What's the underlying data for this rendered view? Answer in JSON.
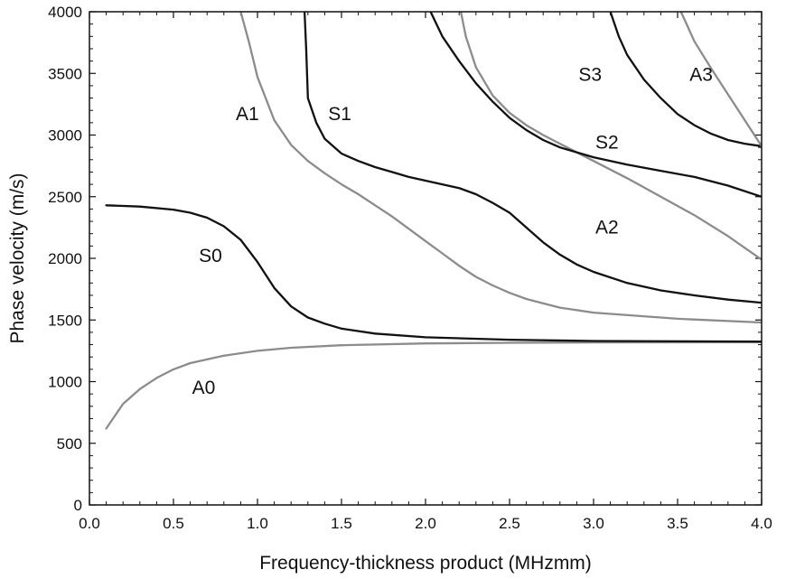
{
  "chart_data": {
    "type": "line",
    "title": "",
    "xlabel": "Frequency-thickness product (MHzmm)",
    "ylabel": "Phase velocity (m/s)",
    "xlim": [
      0.0,
      4.0
    ],
    "ylim": [
      0,
      4000
    ],
    "x_ticks": [
      "0.0",
      "0.5",
      "1.0",
      "1.5",
      "2.0",
      "2.5",
      "3.0",
      "3.5",
      "4.0"
    ],
    "y_ticks": [
      "0",
      "500",
      "1000",
      "1500",
      "2000",
      "2500",
      "3000",
      "3500",
      "4000"
    ],
    "grid": false,
    "colors": {
      "symmetric": "#111111",
      "antisymmetric": "#8c8c8c"
    },
    "series": [
      {
        "name": "A0",
        "color": "#8c8c8c",
        "label_at": [
          0.68,
          960
        ],
        "points": [
          [
            0.1,
            620
          ],
          [
            0.2,
            820
          ],
          [
            0.3,
            940
          ],
          [
            0.4,
            1030
          ],
          [
            0.5,
            1100
          ],
          [
            0.6,
            1150
          ],
          [
            0.8,
            1210
          ],
          [
            1.0,
            1250
          ],
          [
            1.2,
            1275
          ],
          [
            1.5,
            1295
          ],
          [
            2.0,
            1310
          ],
          [
            2.5,
            1315
          ],
          [
            3.0,
            1318
          ],
          [
            4.0,
            1320
          ]
        ]
      },
      {
        "name": "S0",
        "color": "#111111",
        "label_at": [
          0.72,
          2030
        ],
        "points": [
          [
            0.1,
            2430
          ],
          [
            0.3,
            2420
          ],
          [
            0.5,
            2395
          ],
          [
            0.6,
            2370
          ],
          [
            0.7,
            2330
          ],
          [
            0.8,
            2260
          ],
          [
            0.9,
            2150
          ],
          [
            1.0,
            1970
          ],
          [
            1.1,
            1760
          ],
          [
            1.2,
            1610
          ],
          [
            1.3,
            1520
          ],
          [
            1.4,
            1470
          ],
          [
            1.5,
            1430
          ],
          [
            1.7,
            1390
          ],
          [
            2.0,
            1360
          ],
          [
            2.5,
            1340
          ],
          [
            3.0,
            1330
          ],
          [
            4.0,
            1325
          ]
        ]
      },
      {
        "name": "A1",
        "color": "#8c8c8c",
        "label_at": [
          0.94,
          3180
        ],
        "points": [
          [
            0.9,
            4000
          ],
          [
            0.95,
            3750
          ],
          [
            1.0,
            3470
          ],
          [
            1.1,
            3120
          ],
          [
            1.2,
            2920
          ],
          [
            1.3,
            2790
          ],
          [
            1.4,
            2690
          ],
          [
            1.5,
            2600
          ],
          [
            1.6,
            2520
          ],
          [
            1.7,
            2430
          ],
          [
            1.8,
            2340
          ],
          [
            1.9,
            2240
          ],
          [
            2.0,
            2140
          ],
          [
            2.1,
            2040
          ],
          [
            2.2,
            1940
          ],
          [
            2.3,
            1850
          ],
          [
            2.4,
            1780
          ],
          [
            2.5,
            1720
          ],
          [
            2.6,
            1670
          ],
          [
            2.8,
            1600
          ],
          [
            3.0,
            1560
          ],
          [
            3.5,
            1510
          ],
          [
            4.0,
            1480
          ]
        ]
      },
      {
        "name": "S1",
        "color": "#111111",
        "label_at": [
          1.49,
          3180
        ],
        "points": [
          [
            1.28,
            4000
          ],
          [
            1.29,
            3700
          ],
          [
            1.3,
            3300
          ],
          [
            1.35,
            3100
          ],
          [
            1.4,
            2970
          ],
          [
            1.5,
            2850
          ],
          [
            1.6,
            2790
          ],
          [
            1.7,
            2740
          ],
          [
            1.8,
            2700
          ],
          [
            1.9,
            2660
          ],
          [
            2.0,
            2630
          ],
          [
            2.1,
            2600
          ],
          [
            2.2,
            2570
          ],
          [
            2.3,
            2520
          ],
          [
            2.4,
            2450
          ],
          [
            2.5,
            2370
          ],
          [
            2.6,
            2250
          ],
          [
            2.7,
            2130
          ],
          [
            2.8,
            2030
          ],
          [
            2.9,
            1950
          ],
          [
            3.0,
            1890
          ],
          [
            3.2,
            1800
          ],
          [
            3.4,
            1740
          ],
          [
            3.6,
            1700
          ],
          [
            3.8,
            1665
          ],
          [
            4.0,
            1640
          ]
        ]
      },
      {
        "name": "A2",
        "color": "#8c8c8c",
        "label_at": [
          3.08,
          2260
        ],
        "points": [
          [
            2.21,
            4000
          ],
          [
            2.24,
            3800
          ],
          [
            2.3,
            3550
          ],
          [
            2.4,
            3320
          ],
          [
            2.5,
            3180
          ],
          [
            2.6,
            3080
          ],
          [
            2.7,
            3000
          ],
          [
            2.8,
            2930
          ],
          [
            3.0,
            2790
          ],
          [
            3.2,
            2650
          ],
          [
            3.4,
            2500
          ],
          [
            3.6,
            2350
          ],
          [
            3.8,
            2180
          ],
          [
            4.0,
            1990
          ]
        ]
      },
      {
        "name": "S2",
        "color": "#111111",
        "label_at": [
          3.08,
          2950
        ],
        "points": [
          [
            2.03,
            4000
          ],
          [
            2.1,
            3800
          ],
          [
            2.2,
            3600
          ],
          [
            2.3,
            3420
          ],
          [
            2.4,
            3270
          ],
          [
            2.5,
            3140
          ],
          [
            2.6,
            3040
          ],
          [
            2.7,
            2960
          ],
          [
            2.8,
            2900
          ],
          [
            3.0,
            2820
          ],
          [
            3.2,
            2760
          ],
          [
            3.4,
            2710
          ],
          [
            3.6,
            2660
          ],
          [
            3.8,
            2590
          ],
          [
            4.0,
            2500
          ]
        ]
      },
      {
        "name": "S3",
        "color": "#111111",
        "label_at": [
          2.98,
          3500
        ],
        "points": [
          [
            3.1,
            4000
          ],
          [
            3.15,
            3800
          ],
          [
            3.2,
            3650
          ],
          [
            3.3,
            3450
          ],
          [
            3.4,
            3300
          ],
          [
            3.5,
            3170
          ],
          [
            3.6,
            3080
          ],
          [
            3.7,
            3010
          ],
          [
            3.8,
            2960
          ],
          [
            3.9,
            2930
          ],
          [
            4.0,
            2910
          ]
        ]
      },
      {
        "name": "A3",
        "color": "#8c8c8c",
        "label_at": [
          3.64,
          3500
        ],
        "points": [
          [
            3.52,
            4000
          ],
          [
            3.56,
            3880
          ],
          [
            3.6,
            3760
          ],
          [
            3.7,
            3540
          ],
          [
            3.8,
            3330
          ],
          [
            3.9,
            3120
          ],
          [
            4.0,
            2910
          ]
        ]
      }
    ]
  }
}
